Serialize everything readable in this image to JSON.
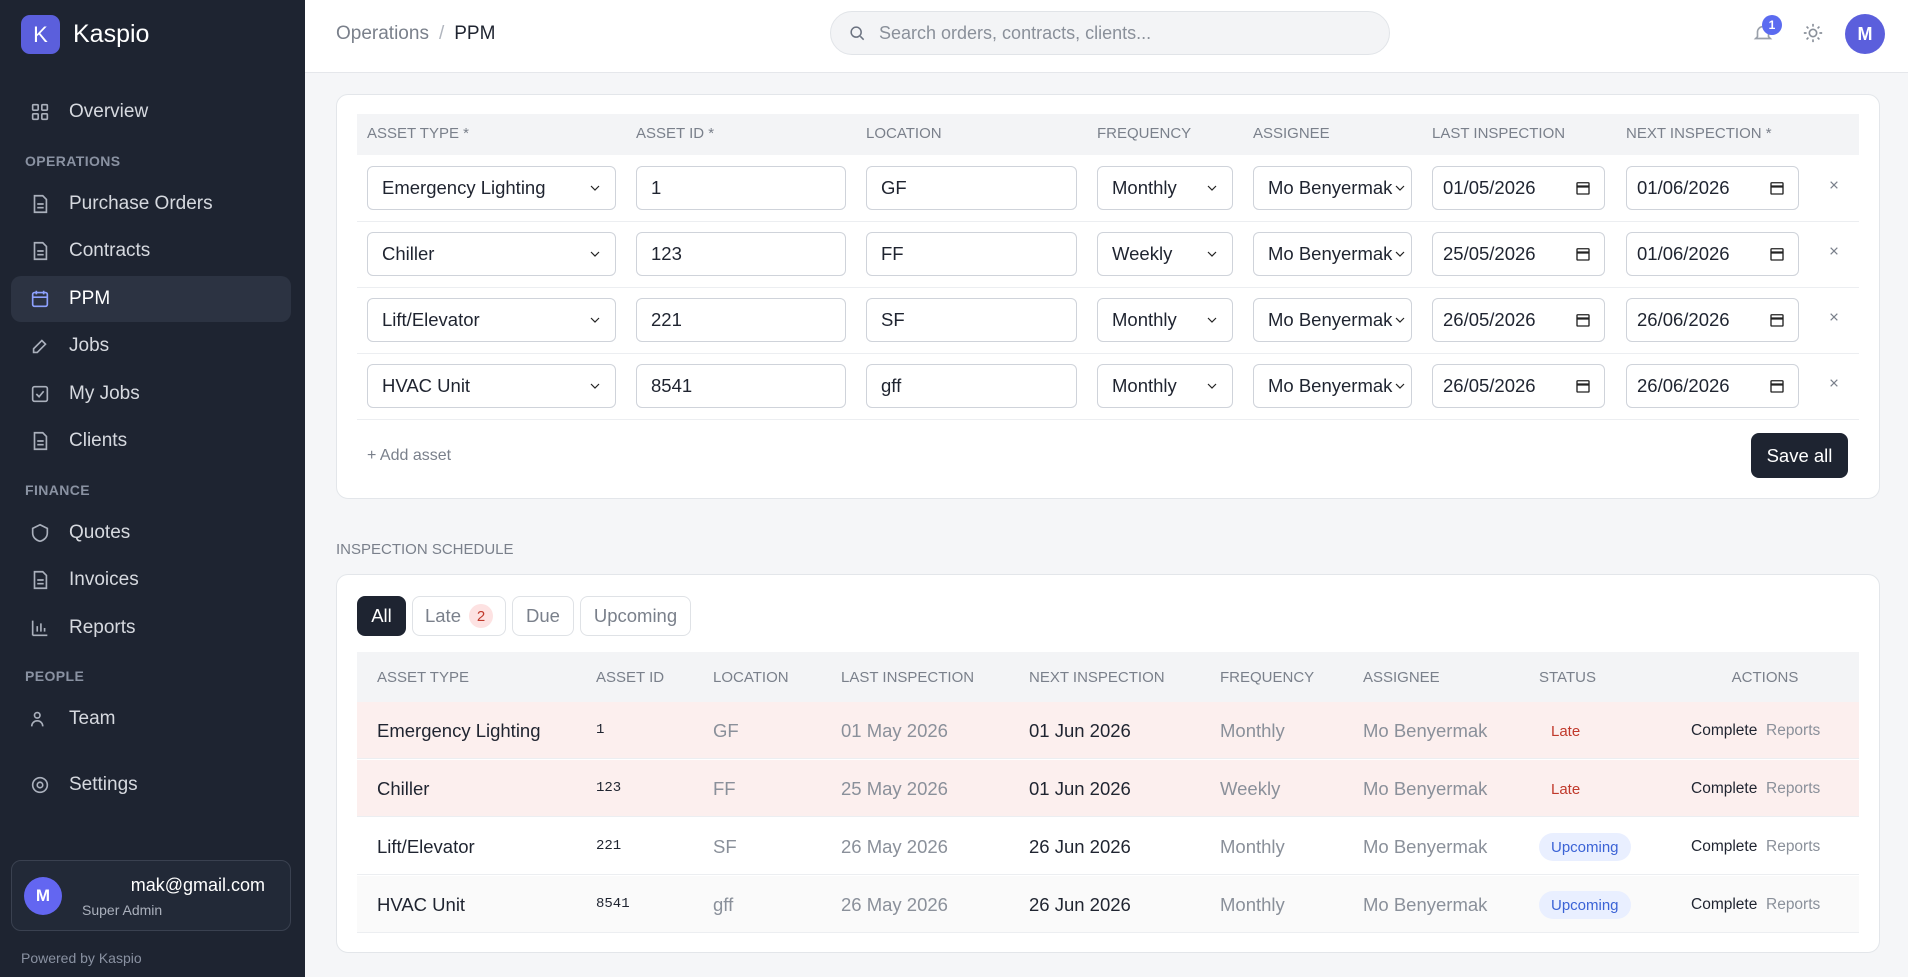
{
  "brand": {
    "logo": "K",
    "name": "Kaspio"
  },
  "nav": {
    "sections": [
      {
        "items": [
          {
            "label": "Overview"
          }
        ]
      },
      {
        "heading": "OPERATIONS",
        "items": [
          {
            "label": "Purchase Orders"
          },
          {
            "label": "Contracts"
          },
          {
            "label": "PPM"
          },
          {
            "label": "Jobs"
          },
          {
            "label": "My Jobs"
          },
          {
            "label": "Clients"
          }
        ]
      },
      {
        "heading": "FINANCE",
        "items": [
          {
            "label": "Quotes"
          },
          {
            "label": "Invoices"
          },
          {
            "label": "Reports"
          }
        ]
      },
      {
        "heading": "PEOPLE",
        "items": [
          {
            "label": "Team"
          }
        ]
      },
      {
        "items": [
          {
            "label": "Settings"
          }
        ]
      }
    ]
  },
  "user": {
    "initial": "M",
    "email": "mak@gmail.com",
    "role": "Super Admin"
  },
  "footer": "Powered by Kaspio",
  "header": {
    "breadcrumb": [
      "Operations",
      "PPM"
    ],
    "separator": "/",
    "search_placeholder": "Search orders, contracts, clients...",
    "notifications": "1",
    "avatar": "M"
  },
  "asset_form": {
    "columns": [
      "ASSET TYPE *",
      "ASSET ID *",
      "LOCATION",
      "FREQUENCY",
      "ASSIGNEE",
      "LAST INSPECTION",
      "NEXT INSPECTION *"
    ],
    "rows": [
      [
        "Emergency Lighting",
        "1",
        "GF",
        "Monthly",
        "Mo Benyermak",
        "01/05/2026",
        "01/06/2026"
      ],
      [
        "Chiller",
        "123",
        "FF",
        "Weekly",
        "Mo Benyermak",
        "25/05/2026",
        "01/06/2026"
      ],
      [
        "Lift/Elevator",
        "221",
        "SF",
        "Monthly",
        "Mo Benyermak",
        "26/05/2026",
        "26/06/2026"
      ],
      [
        "HVAC Unit",
        "8541",
        "gff",
        "Monthly",
        "Mo Benyermak",
        "26/05/2026",
        "26/06/2026"
      ]
    ],
    "add_label": "+ Add asset",
    "save_label": "Save all"
  },
  "schedule": {
    "title": "INSPECTION SCHEDULE",
    "tabs": [
      {
        "label": "All"
      },
      {
        "label": "Late",
        "count": 2
      },
      {
        "label": "Due"
      },
      {
        "label": "Upcoming"
      }
    ],
    "columns": [
      "ASSET TYPE",
      "ASSET ID",
      "LOCATION",
      "LAST INSPECTION",
      "NEXT INSPECTION",
      "FREQUENCY",
      "ASSIGNEE",
      "STATUS",
      "ACTIONS"
    ],
    "rows": [
      {
        "cells": [
          "Emergency Lighting",
          "1",
          "GF",
          "01 May 2026",
          "01 Jun 2026",
          "Monthly",
          "Mo Benyermak"
        ],
        "status": "Late",
        "actions": [
          "Complete",
          "Reports"
        ]
      },
      {
        "cells": [
          "Chiller",
          "123",
          "FF",
          "25 May 2026",
          "01 Jun 2026",
          "Weekly",
          "Mo Benyermak"
        ],
        "status": "Late",
        "actions": [
          "Complete",
          "Reports"
        ]
      },
      {
        "cells": [
          "Lift/Elevator",
          "221",
          "SF",
          "26 May 2026",
          "26 Jun 2026",
          "Monthly",
          "Mo Benyermak"
        ],
        "status": "Upcoming",
        "actions": [
          "Complete",
          "Reports"
        ]
      },
      {
        "cells": [
          "HVAC Unit",
          "8541",
          "gff",
          "26 May 2026",
          "26 Jun 2026",
          "Monthly",
          "Mo Benyermak"
        ],
        "status": "Upcoming",
        "actions": [
          "Complete",
          "Reports"
        ]
      }
    ]
  }
}
